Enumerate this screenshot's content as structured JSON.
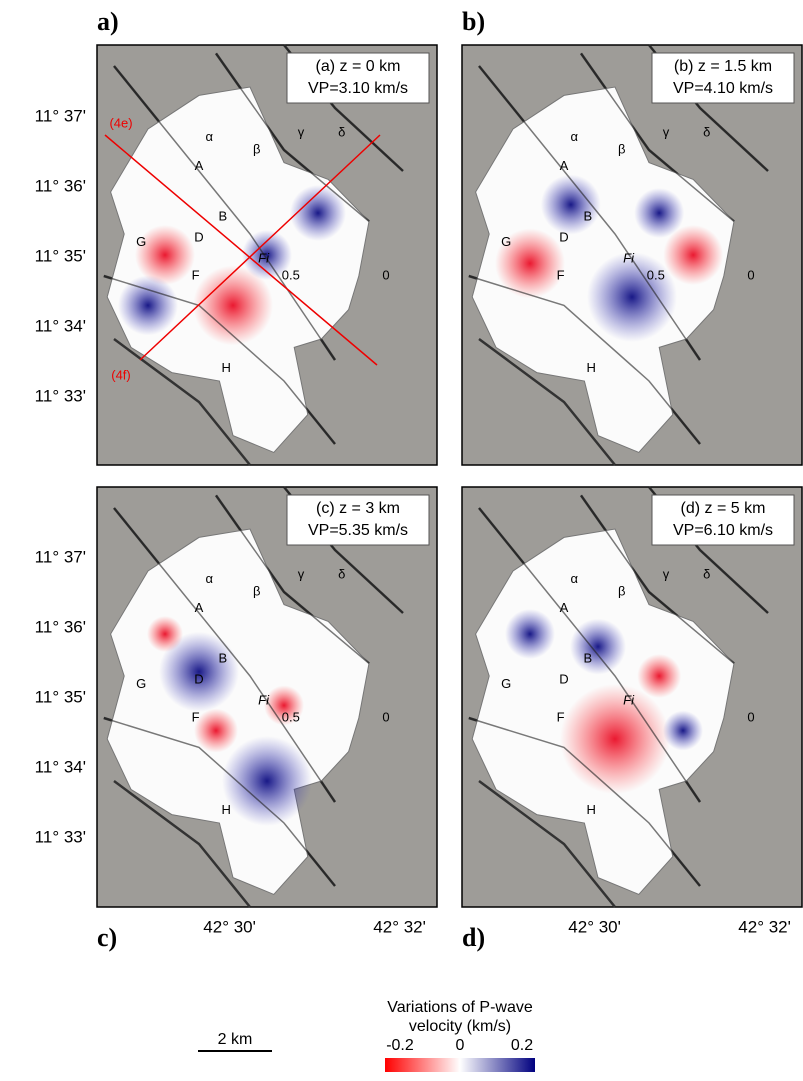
{
  "panels": [
    {
      "letter": "a)",
      "depth": "(a) z = 0 km",
      "velocity": "VP=3.10 km/s",
      "labels": [
        "α",
        "β",
        "γ",
        "δ",
        "A",
        "B",
        "D",
        "F",
        "G",
        "H",
        "Fi",
        "0",
        "0.5"
      ]
    },
    {
      "letter": "b)",
      "depth": "(b) z = 1.5 km",
      "velocity": "VP=4.10 km/s",
      "labels": [
        "α",
        "β",
        "γ",
        "δ",
        "A",
        "B",
        "D",
        "F",
        "G",
        "H",
        "Fi",
        "0",
        "0.5"
      ]
    },
    {
      "letter": "c)",
      "depth": "(c) z = 3 km",
      "velocity": "VP=5.35 km/s",
      "labels": [
        "α",
        "β",
        "γ",
        "δ",
        "A",
        "B",
        "D",
        "F",
        "G",
        "H",
        "Fi",
        "0",
        "0.5"
      ]
    },
    {
      "letter": "d)",
      "depth": "(d) z = 5 km",
      "velocity": "VP=6.10 km/s",
      "labels": [
        "α",
        "β",
        "γ",
        "δ",
        "A",
        "B",
        "D",
        "F",
        "G",
        "H",
        "Fi",
        "0"
      ]
    }
  ],
  "profile_labels": [
    "(4e)",
    "(4f)"
  ],
  "lat_labels": [
    "11° 37'",
    "11° 36'",
    "11° 35'",
    "11° 34'",
    "11° 33'"
  ],
  "lon_labels": [
    "42° 30'",
    "42° 32'"
  ],
  "colorbar": {
    "title_lines": [
      "Variations of P-wave",
      "velocity (km/s)"
    ],
    "ticks": [
      "-0.2",
      "0",
      "0.2"
    ]
  },
  "scale_bar": "2 km"
}
